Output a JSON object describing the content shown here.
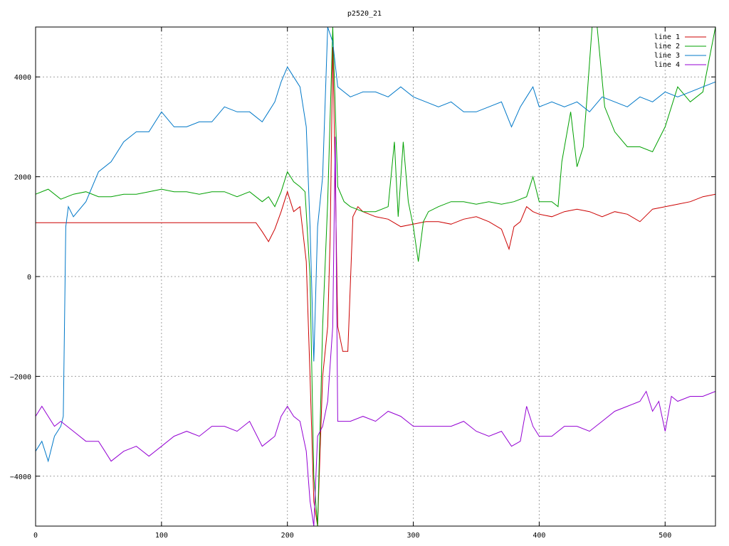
{
  "chart_data": {
    "type": "line",
    "title": "p2520_21",
    "xlabel": "",
    "ylabel": "",
    "xlim": [
      0,
      540
    ],
    "ylim": [
      -5000,
      5000
    ],
    "xticks": [
      0,
      100,
      200,
      300,
      400,
      500
    ],
    "yticks": [
      -4000,
      -2000,
      0,
      2000,
      4000
    ],
    "xtick_labels": [
      "0",
      "100",
      "200",
      "300",
      "400",
      "500"
    ],
    "ytick_labels": [
      "−4000",
      "−2000",
      "0",
      "2000",
      "4000"
    ],
    "grid": true,
    "legend_position": "top-right",
    "series": [
      {
        "name": "line 1",
        "color": "#cc0000",
        "x": [
          0,
          50,
          100,
          150,
          175,
          180,
          185,
          190,
          195,
          200,
          205,
          210,
          215,
          218,
          221,
          224,
          228,
          232,
          234,
          236,
          238,
          240,
          244,
          248,
          252,
          256,
          260,
          270,
          280,
          290,
          300,
          310,
          320,
          330,
          340,
          350,
          360,
          370,
          376,
          380,
          385,
          390,
          395,
          400,
          410,
          420,
          430,
          440,
          450,
          460,
          470,
          480,
          490,
          500,
          510,
          520,
          530,
          540
        ],
        "y": [
          1080,
          1080,
          1080,
          1080,
          1080,
          900,
          700,
          950,
          1300,
          1700,
          1300,
          1400,
          300,
          -2000,
          -4500,
          -5000,
          -2000,
          -1000,
          800,
          4600,
          2000,
          -1000,
          -1500,
          -1500,
          1200,
          1400,
          1300,
          1200,
          1150,
          1000,
          1050,
          1100,
          1100,
          1050,
          1150,
          1200,
          1100,
          950,
          550,
          1000,
          1100,
          1400,
          1300,
          1250,
          1200,
          1300,
          1350,
          1300,
          1200,
          1300,
          1250,
          1100,
          1350,
          1400,
          1450,
          1500,
          1600,
          1650
        ]
      },
      {
        "name": "line 2",
        "color": "#00a000",
        "x": [
          0,
          10,
          20,
          30,
          40,
          50,
          60,
          70,
          80,
          90,
          100,
          110,
          120,
          130,
          140,
          150,
          160,
          170,
          180,
          185,
          190,
          195,
          200,
          205,
          210,
          214,
          218,
          221,
          224,
          228,
          232,
          236,
          240,
          245,
          250,
          260,
          270,
          280,
          285,
          288,
          292,
          296,
          300,
          304,
          308,
          312,
          320,
          330,
          340,
          350,
          360,
          370,
          380,
          390,
          395,
          400,
          410,
          415,
          418,
          425,
          430,
          435,
          438,
          442,
          446,
          452,
          460,
          470,
          480,
          490,
          500,
          510,
          520,
          530,
          540
        ],
        "y": [
          1650,
          1750,
          1550,
          1650,
          1700,
          1600,
          1600,
          1650,
          1650,
          1700,
          1750,
          1700,
          1700,
          1650,
          1700,
          1700,
          1600,
          1700,
          1500,
          1600,
          1400,
          1700,
          2100,
          1900,
          1800,
          1700,
          0,
          -4000,
          -5000,
          -1000,
          1500,
          5000,
          1800,
          1500,
          1400,
          1300,
          1300,
          1400,
          2700,
          1200,
          2700,
          1500,
          1000,
          300,
          1100,
          1300,
          1400,
          1500,
          1500,
          1450,
          1500,
          1450,
          1500,
          1600,
          2000,
          1500,
          1500,
          1400,
          2300,
          3300,
          2200,
          2600,
          3600,
          5000,
          5000,
          3400,
          2900,
          2600,
          2600,
          2500,
          3000,
          3800,
          3500,
          3700,
          5000
        ]
      },
      {
        "name": "line 3",
        "color": "#0078c8",
        "x": [
          0,
          5,
          10,
          15,
          20,
          22,
          24,
          26,
          30,
          40,
          50,
          60,
          70,
          80,
          90,
          100,
          110,
          120,
          130,
          140,
          150,
          160,
          170,
          180,
          185,
          190,
          195,
          200,
          205,
          210,
          215,
          218,
          221,
          224,
          228,
          232,
          236,
          240,
          250,
          260,
          270,
          280,
          290,
          300,
          310,
          320,
          330,
          340,
          350,
          360,
          370,
          378,
          385,
          390,
          395,
          400,
          410,
          420,
          430,
          440,
          450,
          460,
          470,
          480,
          490,
          500,
          510,
          520,
          530,
          540
        ],
        "y": [
          -3500,
          -3300,
          -3700,
          -3200,
          -3000,
          -2800,
          1000,
          1400,
          1200,
          1500,
          2100,
          2300,
          2700,
          2900,
          2900,
          3300,
          3000,
          3000,
          3100,
          3100,
          3400,
          3300,
          3300,
          3100,
          3300,
          3500,
          3900,
          4200,
          4000,
          3800,
          3000,
          1000,
          -1700,
          1000,
          2000,
          5000,
          4700,
          3800,
          3600,
          3700,
          3700,
          3600,
          3800,
          3600,
          3500,
          3400,
          3500,
          3300,
          3300,
          3400,
          3500,
          3000,
          3400,
          3600,
          3800,
          3400,
          3500,
          3400,
          3500,
          3300,
          3600,
          3500,
          3400,
          3600,
          3500,
          3700,
          3600,
          3700,
          3800,
          3900
        ]
      },
      {
        "name": "line 4",
        "color": "#9400d3",
        "x": [
          0,
          5,
          10,
          15,
          20,
          30,
          40,
          50,
          55,
          60,
          70,
          80,
          90,
          100,
          110,
          120,
          130,
          140,
          150,
          160,
          170,
          180,
          185,
          190,
          195,
          200,
          205,
          210,
          215,
          218,
          221,
          224,
          228,
          232,
          236,
          238,
          240,
          250,
          260,
          270,
          280,
          290,
          300,
          310,
          320,
          330,
          340,
          350,
          360,
          370,
          378,
          385,
          390,
          395,
          400,
          410,
          420,
          430,
          440,
          450,
          460,
          470,
          480,
          485,
          490,
          495,
          500,
          505,
          510,
          520,
          530,
          540
        ],
        "y": [
          -2800,
          -2600,
          -2800,
          -3000,
          -2900,
          -3100,
          -3300,
          -3300,
          -3500,
          -3700,
          -3500,
          -3400,
          -3600,
          -3400,
          -3200,
          -3100,
          -3200,
          -3000,
          -3000,
          -3100,
          -2900,
          -3400,
          -3300,
          -3200,
          -2800,
          -2600,
          -2800,
          -2900,
          -3500,
          -4500,
          -5000,
          -3200,
          -3000,
          -2500,
          -1000,
          2800,
          -2900,
          -2900,
          -2800,
          -2900,
          -2700,
          -2800,
          -3000,
          -3000,
          -3000,
          -3000,
          -2900,
          -3100,
          -3200,
          -3100,
          -3400,
          -3300,
          -2600,
          -3000,
          -3200,
          -3200,
          -3000,
          -3000,
          -3100,
          -2900,
          -2700,
          -2600,
          -2500,
          -2300,
          -2700,
          -2500,
          -3100,
          -2400,
          -2500,
          -2400,
          -2400,
          -2300
        ]
      }
    ]
  }
}
